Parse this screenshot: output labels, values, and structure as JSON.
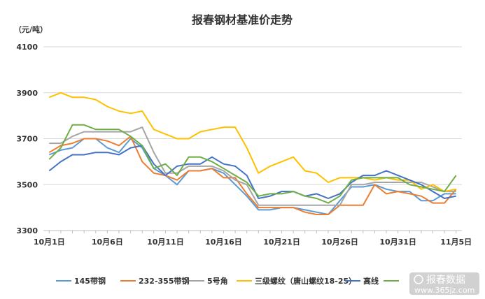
{
  "chart_data": {
    "type": "line",
    "title": "报春钢材基准价走势",
    "ylabel": "（元/吨）",
    "ylim": [
      3300,
      4100
    ],
    "yticks": [
      3300,
      3500,
      3700,
      3900,
      4100
    ],
    "xticks": [
      "10月1日",
      "10月6日",
      "10月11日",
      "10月16日",
      "10月21日",
      "10月26日",
      "10月31日",
      "11月5日"
    ],
    "x": [
      1,
      2,
      3,
      4,
      5,
      6,
      7,
      8,
      9,
      10,
      11,
      12,
      13,
      14,
      15,
      16,
      17,
      18,
      19,
      20,
      21,
      22,
      23,
      24,
      25,
      26,
      27,
      28,
      29,
      30,
      31,
      32,
      33,
      34,
      35,
      36
    ],
    "grid": "horizontal",
    "legend": "bottom",
    "series": [
      {
        "name": "145带钢",
        "color": "#5b9bd5",
        "values": [
          3630,
          3650,
          3660,
          3700,
          3700,
          3660,
          3640,
          3700,
          3660,
          3570,
          3540,
          3500,
          3560,
          3560,
          3570,
          3550,
          3500,
          3450,
          3390,
          3390,
          3400,
          3400,
          3390,
          3380,
          3370,
          3430,
          3490,
          3490,
          3500,
          3480,
          3470,
          3470,
          3430,
          3430,
          3460,
          3460
        ]
      },
      {
        "name": "232-355带钢",
        "color": "#ed7d31",
        "values": [
          3640,
          3670,
          3680,
          3700,
          3700,
          3690,
          3670,
          3710,
          3600,
          3550,
          3540,
          3520,
          3560,
          3560,
          3570,
          3530,
          3530,
          3460,
          3400,
          3400,
          3400,
          3400,
          3380,
          3370,
          3370,
          3410,
          3410,
          3410,
          3500,
          3460,
          3470,
          3460,
          3450,
          3420,
          3420,
          3480
        ]
      },
      {
        "name": "5号角",
        "color": "#a5a5a5",
        "values": [
          3680,
          3680,
          3710,
          3730,
          3730,
          3730,
          3730,
          3730,
          3750,
          3640,
          3550,
          3550,
          3580,
          3580,
          3580,
          3560,
          3520,
          3500,
          3410,
          3410,
          3410,
          3410,
          3410,
          3410,
          3410,
          3410,
          3500,
          3500,
          3510,
          3510,
          3510,
          3510,
          3510,
          3490,
          3470,
          3470
        ]
      },
      {
        "name": "三级螺纹（唐山螺纹18-25）",
        "color": "#ffc000",
        "values": [
          3880,
          3900,
          3880,
          3880,
          3870,
          3840,
          3820,
          3810,
          3820,
          3740,
          3720,
          3700,
          3700,
          3730,
          3740,
          3750,
          3750,
          3660,
          3550,
          3580,
          3600,
          3620,
          3560,
          3550,
          3510,
          3530,
          3530,
          3530,
          3520,
          3530,
          3520,
          3520,
          3480,
          3500,
          3470,
          3480
        ]
      },
      {
        "name": "高线",
        "color": "#4472c4",
        "values": [
          3560,
          3600,
          3630,
          3630,
          3640,
          3640,
          3630,
          3660,
          3670,
          3590,
          3540,
          3580,
          3590,
          3590,
          3620,
          3590,
          3580,
          3540,
          3440,
          3450,
          3470,
          3470,
          3450,
          3460,
          3440,
          3460,
          3510,
          3540,
          3540,
          3560,
          3540,
          3520,
          3500,
          3470,
          3440,
          3450
        ]
      },
      {
        "name": "",
        "color": "#70ad47",
        "values": [
          3610,
          3660,
          3760,
          3760,
          3740,
          3740,
          3740,
          3710,
          3670,
          3570,
          3590,
          3540,
          3620,
          3620,
          3600,
          3570,
          3540,
          3510,
          3450,
          3460,
          3460,
          3470,
          3450,
          3440,
          3420,
          3450,
          3520,
          3530,
          3530,
          3530,
          3530,
          3500,
          3490,
          3480,
          3470,
          3540
        ]
      }
    ]
  },
  "watermark": {
    "text": "报春数据",
    "url": "www.365jz.com"
  }
}
